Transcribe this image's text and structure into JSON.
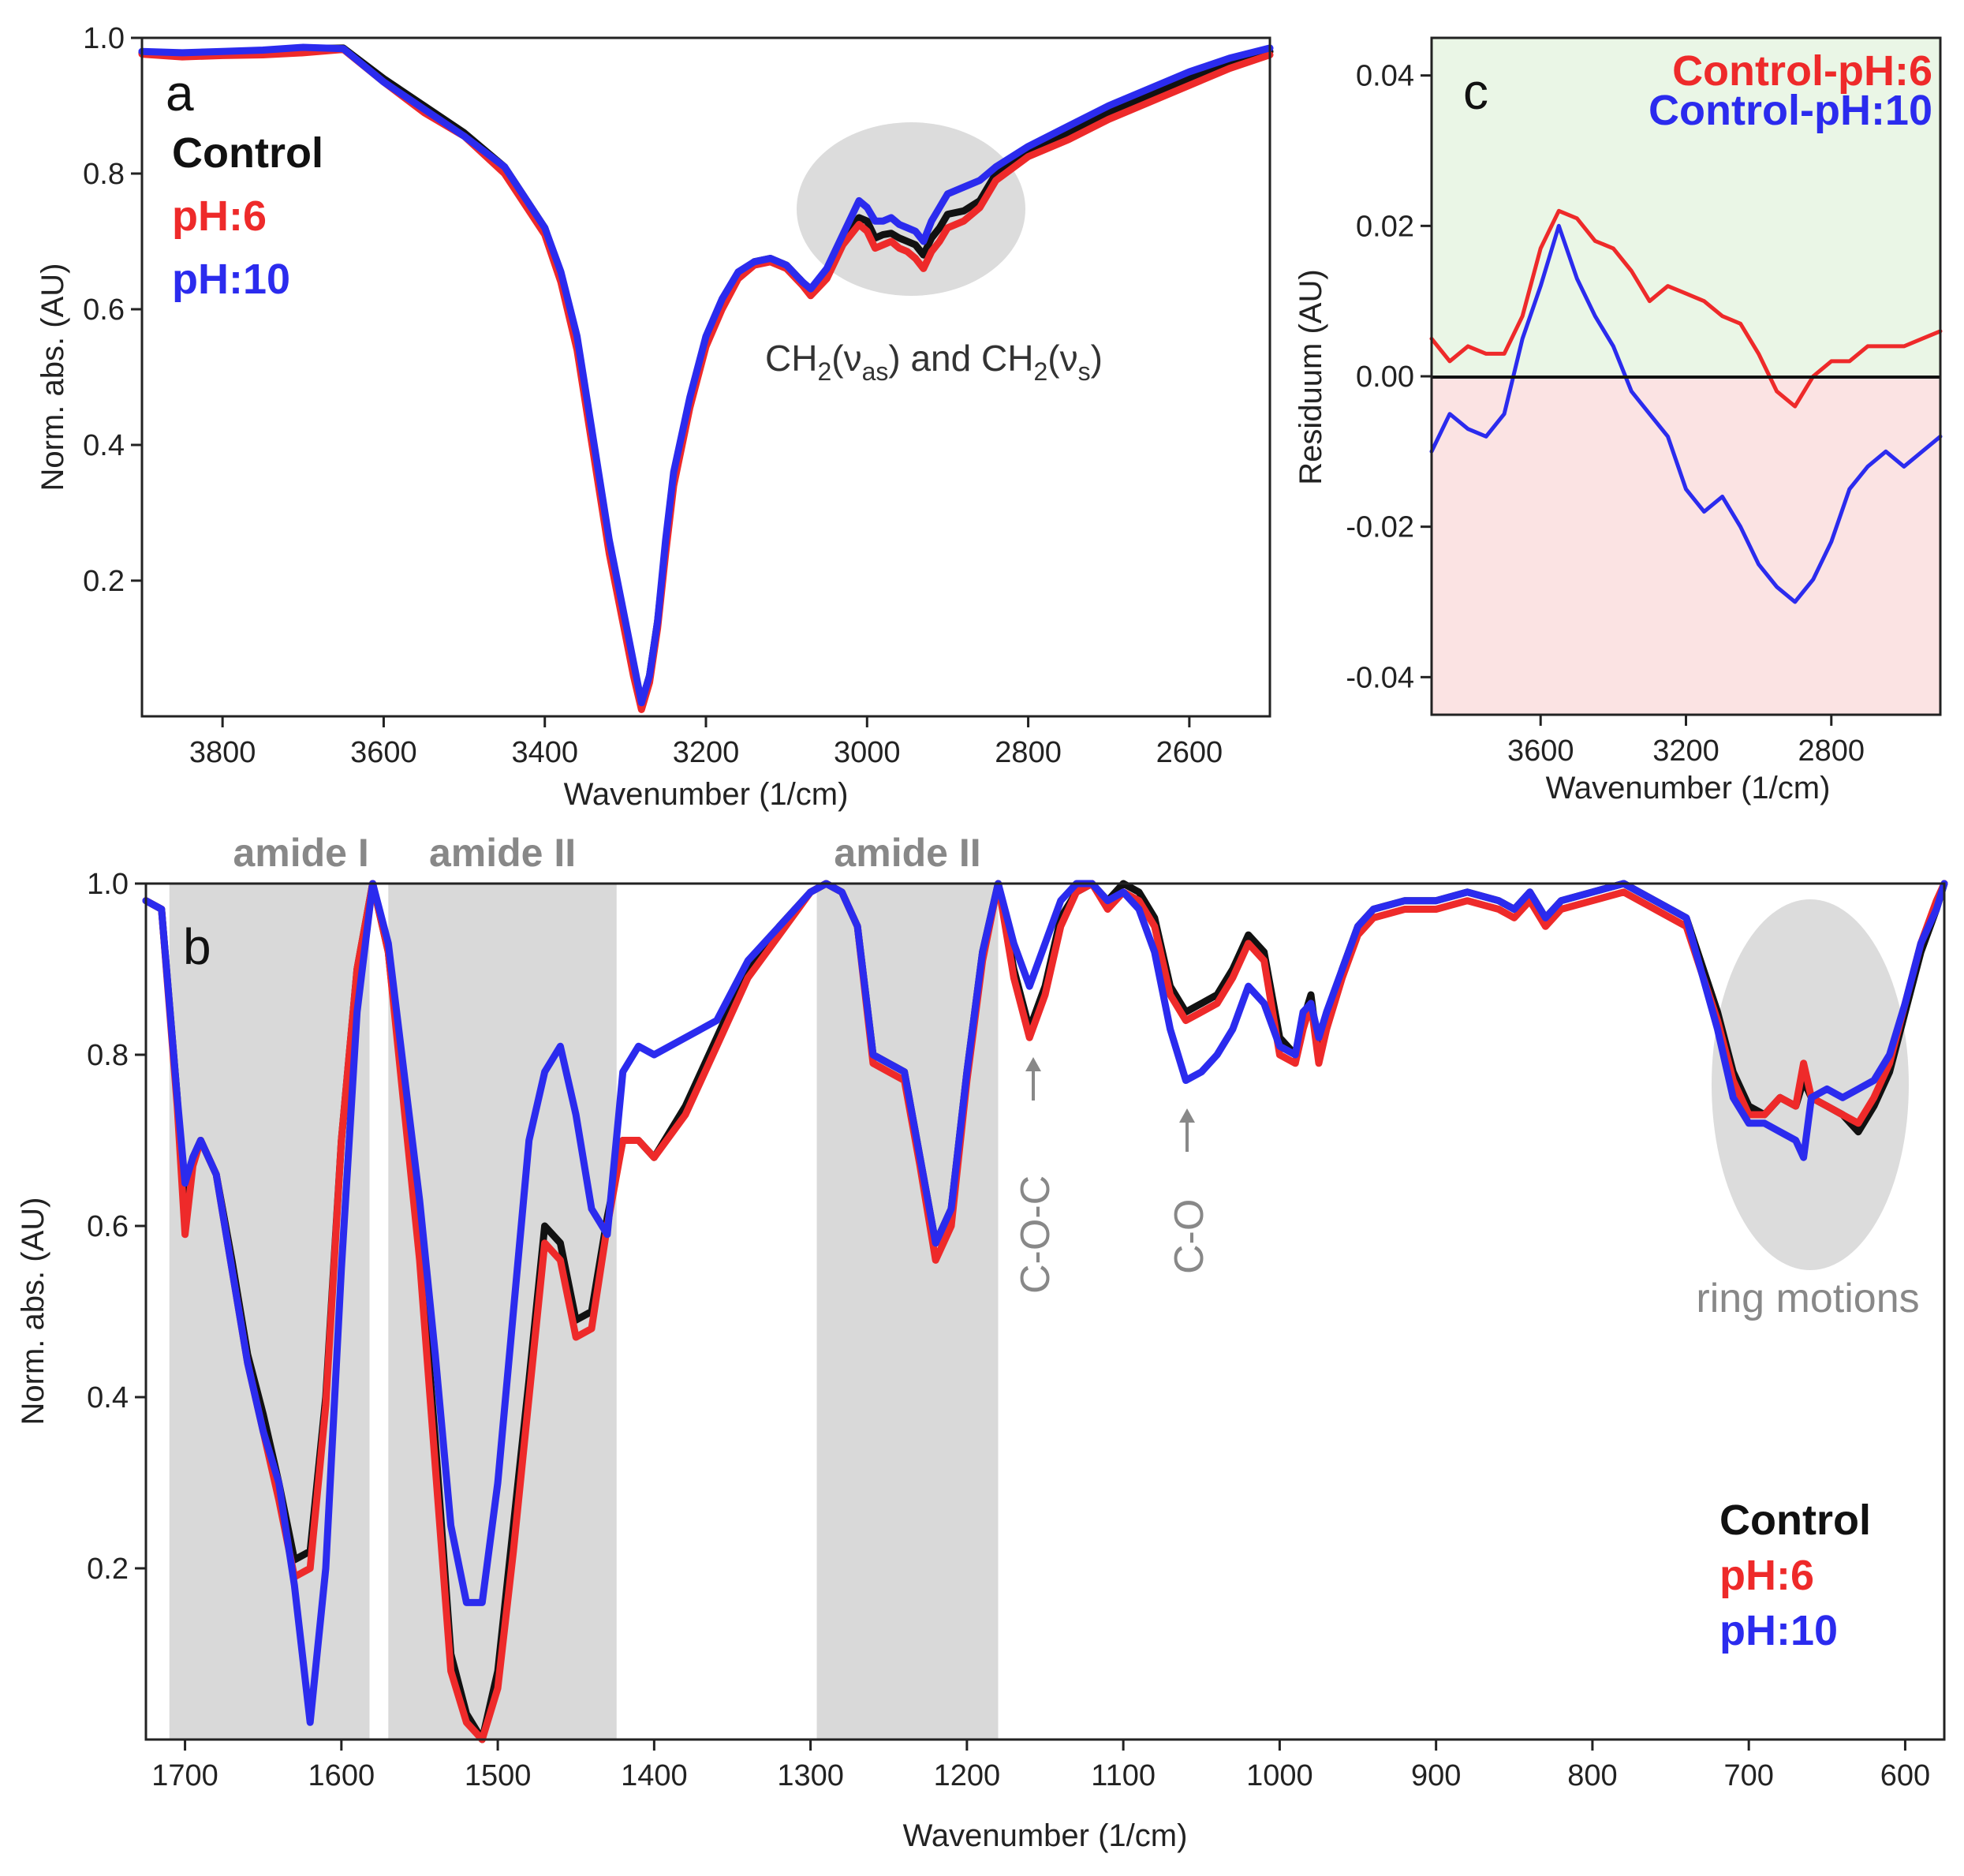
{
  "colors": {
    "control": "#111111",
    "ph6": "#ee2a2a",
    "ph10": "#2b2bee",
    "band": "#d9d9d9",
    "ellipse": "#dcdcdc",
    "pos_bg": "#eaf6e6",
    "neg_bg": "#fbe3e3",
    "gray_text": "#888888"
  },
  "chart_data": [
    {
      "id": "a",
      "type": "line",
      "panel_letter": "a",
      "xlabel": "Wavenumber (1/cm)",
      "ylabel": "Norm. abs. (AU)",
      "xlim": [
        3900,
        2500
      ],
      "ylim": [
        0.0,
        1.0
      ],
      "xticks": [
        3800,
        3600,
        3400,
        3200,
        3000,
        2800,
        2600
      ],
      "xtick_labels": [
        "3800",
        "3600",
        "3400",
        "3200",
        "3000",
        "2800",
        "2600"
      ],
      "yticks": [
        0.2,
        0.4,
        0.6,
        0.8,
        1.0
      ],
      "ytick_labels": [
        "0.2",
        "0.4",
        "0.6",
        "0.8",
        "1.0"
      ],
      "legend": [
        "Control",
        "pH:6",
        "pH:10"
      ],
      "legend_position": "top-left",
      "annotation": {
        "p1": "CH",
        "s1": "2",
        "p2": "(ν",
        "s2": "as",
        "p3": ") and CH",
        "s3": "2",
        "p4": "(ν",
        "s4": "s",
        "p5": ")"
      },
      "x": [
        3900,
        3850,
        3800,
        3750,
        3700,
        3650,
        3600,
        3550,
        3500,
        3450,
        3400,
        3380,
        3360,
        3340,
        3320,
        3300,
        3290,
        3280,
        3270,
        3260,
        3250,
        3240,
        3220,
        3200,
        3180,
        3160,
        3140,
        3120,
        3100,
        3080,
        3070,
        3050,
        3030,
        3010,
        3000,
        2990,
        2980,
        2970,
        2960,
        2950,
        2940,
        2930,
        2920,
        2910,
        2900,
        2880,
        2860,
        2840,
        2800,
        2750,
        2700,
        2650,
        2600,
        2550,
        2500
      ],
      "series": [
        {
          "name": "Control",
          "color_key": "control",
          "values": [
            0.978,
            0.976,
            0.978,
            0.98,
            0.984,
            0.985,
            0.94,
            0.9,
            0.86,
            0.81,
            0.72,
            0.65,
            0.55,
            0.4,
            0.25,
            0.13,
            0.07,
            0.02,
            0.06,
            0.14,
            0.25,
            0.35,
            0.46,
            0.55,
            0.61,
            0.65,
            0.67,
            0.675,
            0.665,
            0.64,
            0.625,
            0.65,
            0.7,
            0.735,
            0.73,
            0.705,
            0.71,
            0.712,
            0.705,
            0.7,
            0.695,
            0.68,
            0.705,
            0.72,
            0.74,
            0.745,
            0.76,
            0.8,
            0.835,
            0.86,
            0.89,
            0.915,
            0.94,
            0.965,
            0.98
          ]
        },
        {
          "name": "pH:6",
          "color_key": "ph6",
          "values": [
            0.976,
            0.972,
            0.974,
            0.975,
            0.978,
            0.983,
            0.935,
            0.89,
            0.855,
            0.8,
            0.71,
            0.64,
            0.54,
            0.39,
            0.24,
            0.12,
            0.06,
            0.01,
            0.05,
            0.13,
            0.24,
            0.34,
            0.455,
            0.545,
            0.6,
            0.645,
            0.665,
            0.67,
            0.66,
            0.635,
            0.62,
            0.645,
            0.695,
            0.725,
            0.715,
            0.69,
            0.695,
            0.7,
            0.69,
            0.685,
            0.675,
            0.66,
            0.685,
            0.7,
            0.72,
            0.73,
            0.75,
            0.79,
            0.825,
            0.85,
            0.88,
            0.905,
            0.93,
            0.955,
            0.975
          ]
        },
        {
          "name": "pH:10",
          "color_key": "ph10",
          "values": [
            0.98,
            0.978,
            0.98,
            0.982,
            0.986,
            0.984,
            0.935,
            0.895,
            0.855,
            0.81,
            0.72,
            0.655,
            0.56,
            0.41,
            0.26,
            0.14,
            0.08,
            0.02,
            0.06,
            0.14,
            0.26,
            0.36,
            0.47,
            0.56,
            0.615,
            0.655,
            0.67,
            0.675,
            0.665,
            0.64,
            0.63,
            0.66,
            0.71,
            0.76,
            0.75,
            0.73,
            0.73,
            0.735,
            0.725,
            0.72,
            0.715,
            0.7,
            0.73,
            0.75,
            0.77,
            0.78,
            0.79,
            0.81,
            0.84,
            0.87,
            0.9,
            0.925,
            0.95,
            0.97,
            0.985
          ]
        }
      ]
    },
    {
      "id": "c",
      "type": "line",
      "panel_letter": "c",
      "xlabel": "Wavenumber (1/cm)",
      "ylabel": "Residuum (AU)",
      "xlim": [
        3900,
        2500
      ],
      "ylim": [
        -0.045,
        0.045
      ],
      "xticks": [
        3600,
        3200,
        2800
      ],
      "xtick_labels": [
        "3600",
        "3200",
        "2800"
      ],
      "yticks": [
        -0.04,
        -0.02,
        0.0,
        0.02,
        0.04
      ],
      "ytick_labels": [
        "-0.04",
        "-0.02",
        "0.00",
        "0.02",
        "0.04"
      ],
      "legend": [
        "Control-pH:6",
        "Control-pH:10"
      ],
      "legend_position": "top-right",
      "x": [
        3900,
        3850,
        3800,
        3750,
        3700,
        3650,
        3600,
        3550,
        3500,
        3450,
        3400,
        3350,
        3300,
        3250,
        3200,
        3150,
        3100,
        3050,
        3000,
        2950,
        2900,
        2850,
        2800,
        2750,
        2700,
        2650,
        2600,
        2550,
        2500
      ],
      "series": [
        {
          "name": "Control-pH:6",
          "color_key": "ph6",
          "values": [
            0.005,
            0.002,
            0.004,
            0.003,
            0.003,
            0.008,
            0.017,
            0.022,
            0.021,
            0.018,
            0.017,
            0.014,
            0.01,
            0.012,
            0.011,
            0.01,
            0.008,
            0.007,
            0.003,
            -0.002,
            -0.004,
            0.0,
            0.002,
            0.002,
            0.004,
            0.004,
            0.004,
            0.005,
            0.006
          ]
        },
        {
          "name": "Control-pH:10",
          "color_key": "ph10",
          "values": [
            -0.01,
            -0.005,
            -0.007,
            -0.008,
            -0.005,
            0.005,
            0.012,
            0.02,
            0.013,
            0.008,
            0.004,
            -0.002,
            -0.005,
            -0.008,
            -0.015,
            -0.018,
            -0.016,
            -0.02,
            -0.025,
            -0.028,
            -0.03,
            -0.027,
            -0.022,
            -0.015,
            -0.012,
            -0.01,
            -0.012,
            -0.01,
            -0.008
          ]
        }
      ]
    },
    {
      "id": "b",
      "type": "line",
      "panel_letter": "b",
      "xlabel": "Wavenumber (1/cm)",
      "ylabel": "Norm. abs. (AU)",
      "xlim": [
        1725,
        575
      ],
      "ylim": [
        0.0,
        1.0
      ],
      "xticks": [
        1700,
        1600,
        1500,
        1400,
        1300,
        1200,
        1100,
        1000,
        900,
        800,
        700,
        600
      ],
      "xtick_labels": [
        "1700",
        "1600",
        "1500",
        "1400",
        "1300",
        "1200",
        "1100",
        "1000",
        "900",
        "800",
        "700",
        "600"
      ],
      "yticks": [
        0.2,
        0.4,
        0.6,
        0.8,
        1.0
      ],
      "ytick_labels": [
        "0.2",
        "0.4",
        "0.6",
        "0.8",
        "1.0"
      ],
      "legend": [
        "Control",
        "pH:6",
        "pH:10"
      ],
      "legend_position": "bottom-right",
      "bands": [
        {
          "label": "amide I",
          "from": 1710,
          "to": 1582
        },
        {
          "label": "amide II",
          "from": 1570,
          "to": 1424
        },
        {
          "label": "amide II",
          "from": 1296,
          "to": 1180
        }
      ],
      "annotations": {
        "coc": "C-O-C",
        "co": "C-O",
        "ring": "ring motions"
      },
      "x": [
        1725,
        1715,
        1705,
        1700,
        1695,
        1690,
        1680,
        1670,
        1660,
        1650,
        1640,
        1630,
        1620,
        1610,
        1600,
        1590,
        1580,
        1570,
        1560,
        1550,
        1540,
        1530,
        1520,
        1510,
        1500,
        1490,
        1480,
        1470,
        1460,
        1450,
        1440,
        1430,
        1420,
        1410,
        1400,
        1380,
        1360,
        1340,
        1320,
        1300,
        1290,
        1280,
        1270,
        1260,
        1250,
        1240,
        1230,
        1220,
        1210,
        1200,
        1190,
        1180,
        1170,
        1160,
        1150,
        1140,
        1130,
        1120,
        1110,
        1100,
        1090,
        1080,
        1070,
        1060,
        1050,
        1040,
        1030,
        1020,
        1010,
        1000,
        990,
        985,
        980,
        975,
        970,
        960,
        950,
        940,
        920,
        900,
        880,
        860,
        850,
        840,
        830,
        820,
        800,
        780,
        760,
        740,
        720,
        710,
        700,
        690,
        680,
        670,
        665,
        660,
        650,
        640,
        630,
        620,
        610,
        600,
        590,
        580,
        575
      ],
      "series": [
        {
          "name": "Control",
          "color_key": "control",
          "values": [
            0.98,
            0.97,
            0.75,
            0.6,
            0.68,
            0.7,
            0.66,
            0.56,
            0.45,
            0.38,
            0.3,
            0.21,
            0.22,
            0.4,
            0.7,
            0.9,
            1.0,
            0.92,
            0.75,
            0.58,
            0.35,
            0.1,
            0.03,
            0.0,
            0.08,
            0.25,
            0.42,
            0.6,
            0.58,
            0.49,
            0.5,
            0.61,
            0.7,
            0.7,
            0.68,
            0.74,
            0.82,
            0.9,
            0.95,
            0.99,
            1.0,
            0.99,
            0.95,
            0.8,
            0.79,
            0.78,
            0.68,
            0.58,
            0.62,
            0.78,
            0.92,
            1.0,
            0.9,
            0.83,
            0.88,
            0.96,
            0.99,
            1.0,
            0.98,
            1.0,
            0.99,
            0.96,
            0.88,
            0.85,
            0.86,
            0.87,
            0.9,
            0.94,
            0.92,
            0.82,
            0.8,
            0.84,
            0.87,
            0.8,
            0.84,
            0.9,
            0.95,
            0.97,
            0.98,
            0.98,
            0.99,
            0.98,
            0.97,
            0.99,
            0.96,
            0.98,
            0.99,
            1.0,
            0.98,
            0.96,
            0.85,
            0.78,
            0.74,
            0.73,
            0.75,
            0.74,
            0.77,
            0.75,
            0.74,
            0.73,
            0.71,
            0.74,
            0.78,
            0.85,
            0.92,
            0.97,
            1.0
          ]
        },
        {
          "name": "pH:6",
          "color_key": "ph6",
          "values": [
            0.98,
            0.97,
            0.74,
            0.59,
            0.67,
            0.7,
            0.66,
            0.55,
            0.44,
            0.36,
            0.28,
            0.19,
            0.2,
            0.39,
            0.7,
            0.9,
            1.0,
            0.92,
            0.74,
            0.56,
            0.32,
            0.08,
            0.02,
            0.0,
            0.06,
            0.22,
            0.4,
            0.58,
            0.56,
            0.47,
            0.48,
            0.6,
            0.7,
            0.7,
            0.68,
            0.73,
            0.81,
            0.89,
            0.94,
            0.99,
            1.0,
            0.99,
            0.95,
            0.79,
            0.78,
            0.77,
            0.67,
            0.56,
            0.6,
            0.77,
            0.91,
            1.0,
            0.89,
            0.82,
            0.87,
            0.95,
            0.99,
            1.0,
            0.97,
            0.99,
            0.98,
            0.95,
            0.87,
            0.84,
            0.85,
            0.86,
            0.89,
            0.93,
            0.91,
            0.8,
            0.79,
            0.83,
            0.86,
            0.79,
            0.83,
            0.89,
            0.94,
            0.96,
            0.97,
            0.97,
            0.98,
            0.97,
            0.96,
            0.98,
            0.95,
            0.97,
            0.98,
            0.99,
            0.97,
            0.95,
            0.84,
            0.77,
            0.73,
            0.73,
            0.75,
            0.74,
            0.79,
            0.75,
            0.74,
            0.73,
            0.72,
            0.75,
            0.79,
            0.86,
            0.93,
            0.98,
            1.0
          ]
        },
        {
          "name": "pH:10",
          "color_key": "ph10",
          "values": [
            0.98,
            0.97,
            0.75,
            0.65,
            0.68,
            0.7,
            0.66,
            0.55,
            0.44,
            0.36,
            0.3,
            0.18,
            0.02,
            0.2,
            0.55,
            0.85,
            1.0,
            0.93,
            0.78,
            0.63,
            0.45,
            0.25,
            0.16,
            0.16,
            0.3,
            0.5,
            0.7,
            0.78,
            0.81,
            0.73,
            0.62,
            0.59,
            0.78,
            0.81,
            0.8,
            0.82,
            0.84,
            0.91,
            0.95,
            0.99,
            1.0,
            0.99,
            0.95,
            0.8,
            0.79,
            0.78,
            0.68,
            0.58,
            0.62,
            0.78,
            0.92,
            1.0,
            0.93,
            0.88,
            0.93,
            0.98,
            1.0,
            1.0,
            0.98,
            0.99,
            0.97,
            0.92,
            0.83,
            0.77,
            0.78,
            0.8,
            0.83,
            0.88,
            0.86,
            0.81,
            0.8,
            0.85,
            0.86,
            0.82,
            0.85,
            0.9,
            0.95,
            0.97,
            0.98,
            0.98,
            0.99,
            0.98,
            0.97,
            0.99,
            0.96,
            0.98,
            0.99,
            1.0,
            0.98,
            0.96,
            0.83,
            0.75,
            0.72,
            0.72,
            0.71,
            0.7,
            0.68,
            0.75,
            0.76,
            0.75,
            0.76,
            0.77,
            0.8,
            0.86,
            0.93,
            0.97,
            1.0
          ]
        }
      ]
    }
  ]
}
